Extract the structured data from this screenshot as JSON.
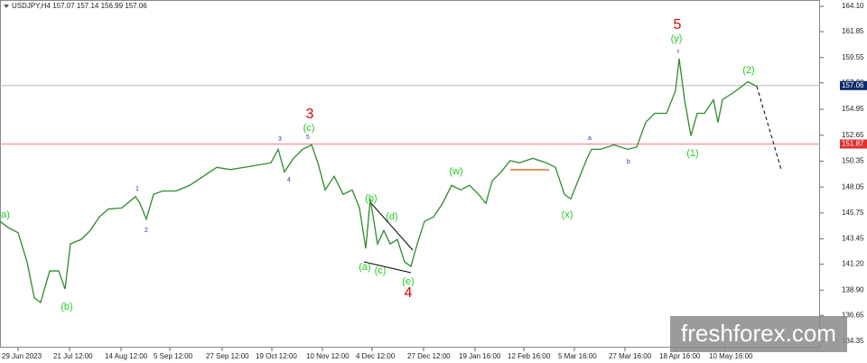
{
  "chart_data": {
    "type": "line",
    "title": "USDJPY,H4  157.07 157.14 156.99 157.06",
    "watermark": "freshforex.com",
    "xlim": [
      0,
      908
    ],
    "ylim": [
      133.79,
      164.66
    ],
    "yticks": [
      {
        "value": 164.1,
        "label": "164.10"
      },
      161.85,
      159.55,
      {
        "value": 157.3,
        "label": "157.30"
      },
      154.95,
      152.65,
      150.35,
      148.05,
      145.75,
      143.45,
      {
        "value": 141.2,
        "label": "141.20"
      },
      {
        "value": 138.9,
        "label": "138.90"
      },
      136.65,
      134.35
    ],
    "xticks": [
      {
        "value": 20,
        "label": "29 Jun 2023"
      },
      {
        "value": 77,
        "label": "21 Jul 12:00"
      },
      {
        "value": 134,
        "label": "14 Aug 12:00"
      },
      {
        "value": 188,
        "label": "5 Sep 12:00"
      },
      {
        "value": 246,
        "label": "27 Sep 12:00"
      },
      {
        "value": 301,
        "label": "19 Oct 12:00"
      },
      {
        "value": 357,
        "label": "10 Nov 12:00"
      },
      {
        "value": 412,
        "label": "4 Dec 12:00"
      },
      {
        "value": 469,
        "label": "27 Dec 12:00"
      },
      {
        "value": 526,
        "label": "19 Jan 16:00"
      },
      {
        "value": 580,
        "label": "12 Feb 16:00"
      },
      {
        "value": 636,
        "label": "5 Mar 16:00"
      },
      {
        "value": 692,
        "label": "27 Mar 16:00"
      },
      {
        "value": 748,
        "label": "18 Apr 16:00"
      },
      {
        "value": 803,
        "label": "10 May 16:00"
      }
    ],
    "series": [
      {
        "color": "#2e8b2e",
        "x": [
          0,
          10,
          20,
          30,
          38,
          45,
          55,
          65,
          72,
          78,
          90,
          100,
          110,
          120,
          135,
          150,
          155,
          162,
          170,
          180,
          195,
          210,
          225,
          240,
          255,
          270,
          285,
          300,
          308,
          315,
          325,
          335,
          345,
          352,
          360,
          370,
          380,
          390,
          398,
          405,
          410,
          418,
          425,
          432,
          440,
          448,
          455,
          462,
          470,
          480,
          490,
          500,
          510,
          520,
          530,
          538,
          545,
          555,
          565,
          575,
          590,
          605,
          615,
          625,
          632,
          640,
          650,
          655,
          665,
          680,
          695,
          705,
          715,
          725,
          738,
          748,
          752,
          758,
          765,
          772,
          780,
          790,
          795,
          800,
          815,
          828,
          838
        ],
        "values": [
          145.0,
          144.4,
          144.0,
          141.4,
          138.2,
          137.8,
          140.6,
          140.6,
          139.0,
          143.0,
          143.4,
          144.2,
          145.4,
          146.1,
          146.2,
          147.2,
          146.6,
          145.2,
          147.4,
          147.7,
          147.7,
          148.2,
          149.0,
          149.8,
          149.6,
          149.8,
          150.0,
          150.2,
          151.4,
          149.4,
          150.6,
          151.4,
          151.8,
          150.2,
          147.8,
          149.0,
          147.4,
          147.8,
          146.2,
          142.6,
          147.0,
          143.0,
          144.2,
          143.0,
          143.4,
          141.4,
          141.0,
          143.0,
          145.0,
          145.4,
          146.6,
          148.2,
          147.8,
          148.2,
          147.4,
          146.6,
          148.6,
          149.4,
          150.4,
          150.2,
          150.6,
          150.2,
          149.8,
          147.4,
          147.0,
          148.6,
          150.6,
          151.4,
          151.4,
          151.8,
          151.4,
          151.6,
          153.8,
          154.6,
          154.6,
          156.6,
          159.45,
          155.8,
          152.6,
          154.6,
          154.6,
          155.8,
          153.8,
          155.8,
          156.6,
          157.4,
          157.0
        ]
      },
      {
        "color": "#000000",
        "dashed": true,
        "x": [
          838,
          865
        ],
        "values": [
          157.0,
          149.6
        ]
      }
    ],
    "levels": [
      {
        "value": 157.06,
        "color": "#bbbbbb",
        "box": "#0b2a6b"
      },
      {
        "value": 151.87,
        "color": "#f08080",
        "box": "#e03030"
      }
    ],
    "annotations": [
      {
        "text": "5",
        "color": "#e00000"
      },
      {
        "text": "(y)",
        "color": "#22cc22"
      },
      {
        "text": "c",
        "color": "#3333aa"
      },
      {
        "text": "(2)",
        "color": "#22cc22"
      },
      {
        "text": "3",
        "color": "#e00000"
      },
      {
        "text": "(c)",
        "color": "#22cc22"
      },
      {
        "text": "3",
        "color": "#3333aa"
      },
      {
        "text": "5",
        "color": "#3333aa"
      },
      {
        "text": "4",
        "color": "#3333aa"
      },
      {
        "text": "1",
        "color": "#3333aa"
      },
      {
        "text": "2",
        "color": "#3333aa"
      },
      {
        "text": "a)",
        "color": "#22cc22"
      },
      {
        "text": "(b)",
        "color": "#22cc22"
      },
      {
        "text": "(w)",
        "color": "#22cc22"
      },
      {
        "text": "(b)",
        "color": "#22cc22"
      },
      {
        "text": "(d)",
        "color": "#22cc22"
      },
      {
        "text": "(a)",
        "color": "#22cc22"
      },
      {
        "text": "(c)",
        "color": "#22cc22"
      },
      {
        "text": "(e)",
        "color": "#22cc22"
      },
      {
        "text": "4",
        "color": "#e00000"
      },
      {
        "text": "(x)",
        "color": "#22cc22"
      },
      {
        "text": "a",
        "color": "#3333aa"
      },
      {
        "text": "b",
        "color": "#3333aa"
      },
      {
        "text": "(1)",
        "color": "#22cc22"
      }
    ]
  }
}
